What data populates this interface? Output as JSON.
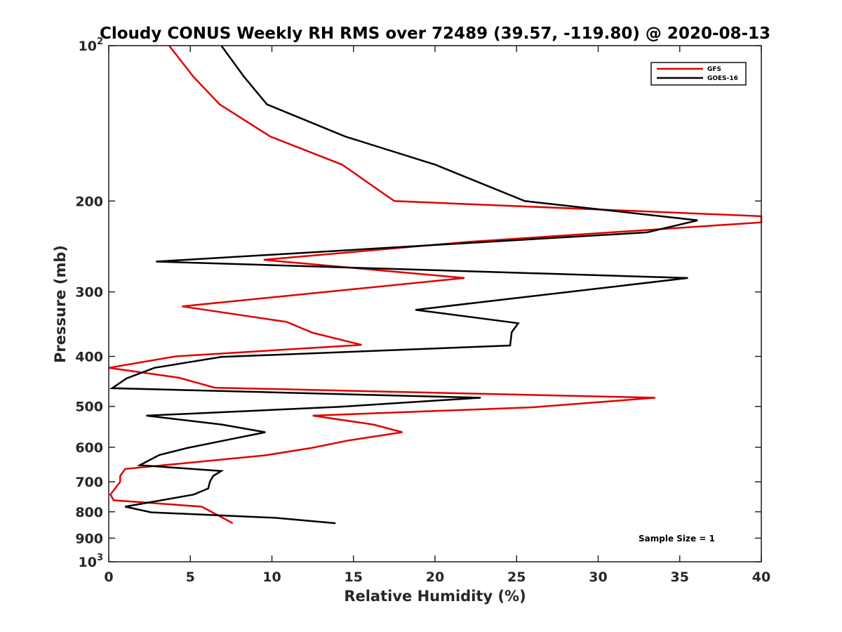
{
  "chart_data": {
    "type": "line",
    "title": "Cloudy CONUS Weekly RH RMS over 72489 (39.57, -119.80) @ 2020-08-13",
    "xlabel": "Relative Humidity (%)",
    "ylabel": "Pressure (mb)",
    "xlim": [
      0,
      40
    ],
    "ylim": [
      100,
      1000
    ],
    "y_scale": "log",
    "y_reversed": true,
    "x_ticks": [
      "0",
      "5",
      "10",
      "15",
      "20",
      "25",
      "30",
      "35",
      "40"
    ],
    "y_ticks": [
      {
        "value": 100,
        "base": "10",
        "exp": "2"
      },
      {
        "value": 200,
        "label": "200"
      },
      {
        "value": 300,
        "label": "300"
      },
      {
        "value": 400,
        "label": "400"
      },
      {
        "value": 500,
        "label": "500"
      },
      {
        "value": 600,
        "label": "600"
      },
      {
        "value": 700,
        "label": "700"
      },
      {
        "value": 800,
        "label": "800"
      },
      {
        "value": 900,
        "label": "900"
      },
      {
        "value": 1000,
        "base": "10",
        "exp": "3"
      }
    ],
    "grid": false,
    "legend_position": "top-right",
    "series": [
      {
        "name": "GFS",
        "color": "#e00000",
        "points": [
          [
            3.7,
            100
          ],
          [
            5.2,
            115
          ],
          [
            6.8,
            130
          ],
          [
            9.9,
            150
          ],
          [
            14.3,
            170
          ],
          [
            17.5,
            200
          ],
          [
            40,
            214
          ],
          [
            40,
            220
          ],
          [
            22,
            240
          ],
          [
            9.5,
            260
          ],
          [
            21.8,
            282
          ],
          [
            4.5,
            320
          ],
          [
            10.9,
            343
          ],
          [
            12.5,
            360
          ],
          [
            15.5,
            380
          ],
          [
            4.1,
            400
          ],
          [
            0,
            421
          ],
          [
            4.3,
            440
          ],
          [
            6.5,
            460
          ],
          [
            33.5,
            481
          ],
          [
            26,
            502
          ],
          [
            12.5,
            521
          ],
          [
            16.2,
            542
          ],
          [
            18,
            561
          ],
          [
            14.7,
            582
          ],
          [
            12.4,
            602
          ],
          [
            9.6,
            622
          ],
          [
            1,
            661
          ],
          [
            0.7,
            682
          ],
          [
            0.7,
            700
          ],
          [
            0.1,
            741
          ],
          [
            0.3,
            760
          ],
          [
            5.7,
            782
          ],
          [
            7.6,
            842
          ]
        ]
      },
      {
        "name": "GOES-16",
        "color": "#000000",
        "points": [
          [
            6.9,
            100
          ],
          [
            8.3,
            115
          ],
          [
            9.7,
            130
          ],
          [
            14.5,
            150
          ],
          [
            20,
            170
          ],
          [
            25.5,
            200
          ],
          [
            36.1,
            218
          ],
          [
            33,
            230
          ],
          [
            2.9,
            262
          ],
          [
            35.5,
            282
          ],
          [
            18.8,
            325
          ],
          [
            25.1,
            345
          ],
          [
            24.7,
            359
          ],
          [
            24.6,
            381
          ],
          [
            6.9,
            401
          ],
          [
            2.8,
            421
          ],
          [
            1.1,
            441
          ],
          [
            0.2,
            461
          ],
          [
            22.8,
            481
          ],
          [
            14.1,
            501
          ],
          [
            2.3,
            521
          ],
          [
            6.9,
            542
          ],
          [
            9.6,
            561
          ],
          [
            7.1,
            582
          ],
          [
            4.8,
            602
          ],
          [
            3.1,
            621
          ],
          [
            1.9,
            650
          ],
          [
            6.9,
            667
          ],
          [
            6.4,
            682
          ],
          [
            6.2,
            700
          ],
          [
            6.1,
            721
          ],
          [
            5.2,
            741
          ],
          [
            1,
            782
          ],
          [
            2.6,
            802
          ],
          [
            10.2,
            822
          ],
          [
            13.9,
            842
          ]
        ]
      }
    ],
    "annotations": [
      "Sample Size = 1"
    ]
  }
}
